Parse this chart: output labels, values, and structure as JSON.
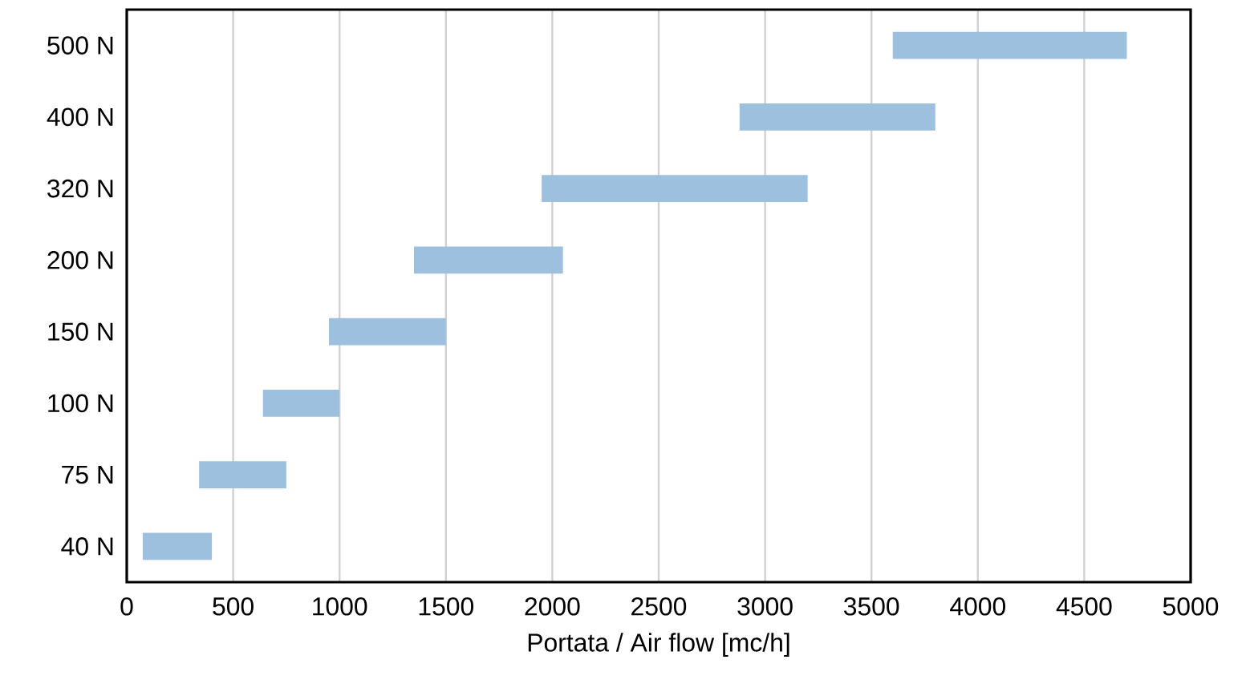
{
  "chart_data": {
    "type": "bar",
    "orientation": "horizontal",
    "xlabel": "Portata / Air flow [mc/h]",
    "categories": [
      "500 N",
      "400 N",
      "320 N",
      "200 N",
      "150 N",
      "100 N",
      "75 N",
      "40 N"
    ],
    "base": [
      3600,
      2880,
      1950,
      1350,
      950,
      640,
      340,
      75
    ],
    "values": [
      1100,
      920,
      1250,
      700,
      550,
      360,
      410,
      325
    ],
    "color": "#9dc0de",
    "xlim": [
      0,
      5000
    ],
    "xticks": [
      0,
      500,
      1000,
      1500,
      2000,
      2500,
      3000,
      3500,
      4000,
      4500,
      5000
    ],
    "grid": "x"
  }
}
